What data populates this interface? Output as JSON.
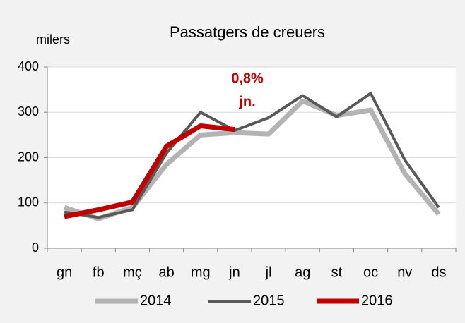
{
  "chart_data": {
    "type": "line",
    "title": "Passatgers de creuers",
    "y_label": "milers",
    "annotations": [
      "0,8%",
      "jn."
    ],
    "annotation_color": "#c00000",
    "categories": [
      "gn",
      "fb",
      "mç",
      "ab",
      "mg",
      "jn",
      "jl",
      "ag",
      "st",
      "oc",
      "nv",
      "ds"
    ],
    "series": [
      {
        "name": "2014",
        "color": "#b3b3b3",
        "values": [
          90,
          65,
          90,
          185,
          250,
          255,
          252,
          325,
          293,
          305,
          165,
          75
        ]
      },
      {
        "name": "2015",
        "color": "#595959",
        "values": [
          80,
          68,
          85,
          210,
          300,
          260,
          288,
          337,
          290,
          342,
          195,
          90
        ]
      },
      {
        "name": "2016",
        "color": "#c00000",
        "values": [
          70,
          85,
          102,
          225,
          270,
          262,
          null,
          null,
          null,
          null,
          null,
          null
        ]
      }
    ],
    "ylim": [
      0,
      400
    ],
    "yticks": [
      0,
      100,
      200,
      300,
      400
    ],
    "grid": true
  }
}
